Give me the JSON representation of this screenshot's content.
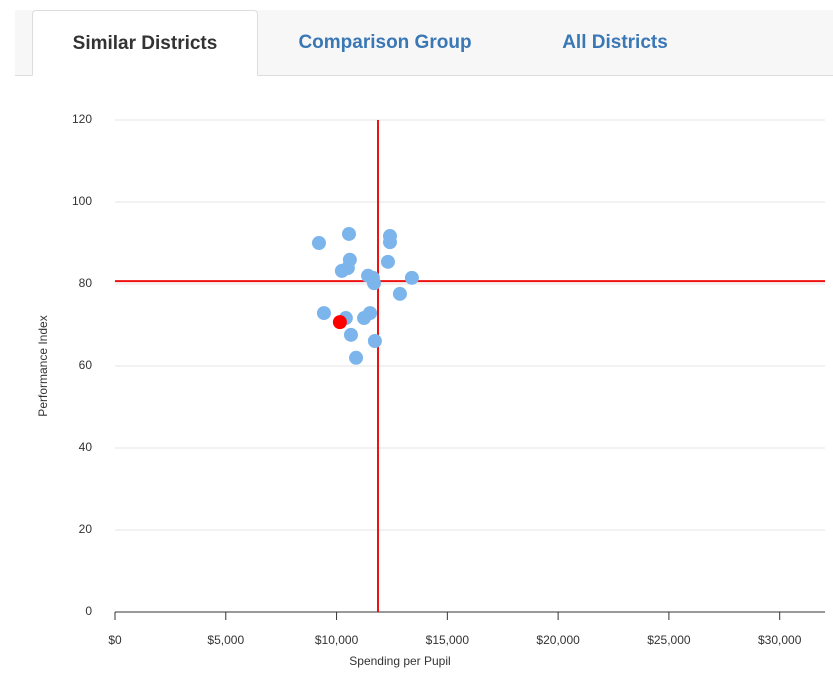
{
  "tabs": [
    "Similar Districts",
    "Comparison Group",
    "All Districts"
  ],
  "active_tab": 0,
  "chart_data": {
    "type": "scatter",
    "xlabel": "Spending per Pupil",
    "ylabel": "Performance Index",
    "xlim": [
      0,
      32000
    ],
    "ylim": [
      0,
      120
    ],
    "xticks": [
      {
        "value": 0,
        "label": "$0"
      },
      {
        "value": 5000,
        "label": "$5,000"
      },
      {
        "value": 10000,
        "label": "$10,000"
      },
      {
        "value": 15000,
        "label": "$15,000"
      },
      {
        "value": 20000,
        "label": "$20,000"
      },
      {
        "value": 25000,
        "label": "$25,000"
      },
      {
        "value": 30000,
        "label": "$30,000"
      }
    ],
    "yticks": [
      0,
      20,
      40,
      60,
      80,
      100,
      120
    ],
    "grid": true,
    "reference_lines": {
      "x": 11870,
      "y": 80.7,
      "color": "#ee1111"
    },
    "series": [
      {
        "color": "#7cb5ec",
        "x": [
          9206,
          10560,
          12410,
          12410,
          10600,
          12320,
          10510,
          10240,
          11420,
          11640,
          11690,
          13400,
          12860,
          9430,
          10420,
          11240,
          11510,
          10650,
          11730,
          10880
        ],
        "values": [
          90.0,
          92.2,
          91.7,
          90.2,
          85.9,
          85.4,
          83.9,
          83.2,
          82.0,
          81.5,
          80.2,
          81.5,
          77.6,
          72.9,
          71.7,
          71.7,
          72.9,
          67.6,
          66.1,
          62.0
        ]
      },
      {
        "color": "#ff0000",
        "x": [
          10150
        ],
        "values": [
          70.7
        ]
      }
    ]
  }
}
